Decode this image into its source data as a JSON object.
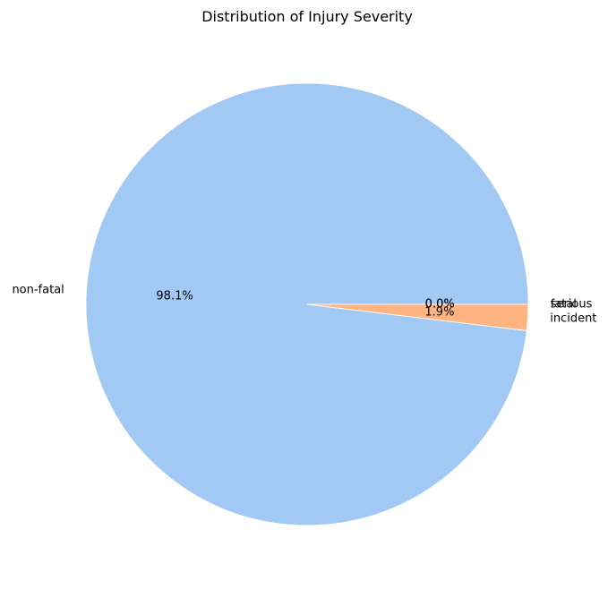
{
  "chart_data": {
    "type": "pie",
    "title": "Distribution of Injury Severity",
    "categories": [
      "non-fatal",
      "incident",
      "serious",
      "fatal"
    ],
    "values": [
      98.1,
      1.9,
      0.0,
      0.0
    ],
    "percent_labels": [
      "98.1%",
      "1.9%",
      "0.0%",
      "0.0%"
    ],
    "colors": [
      "#a1c9f4",
      "#ffb482",
      "#8de5a1",
      "#ff9f9b"
    ],
    "start_angle_deg": 0,
    "direction": "counterclockwise",
    "legend": "none"
  }
}
